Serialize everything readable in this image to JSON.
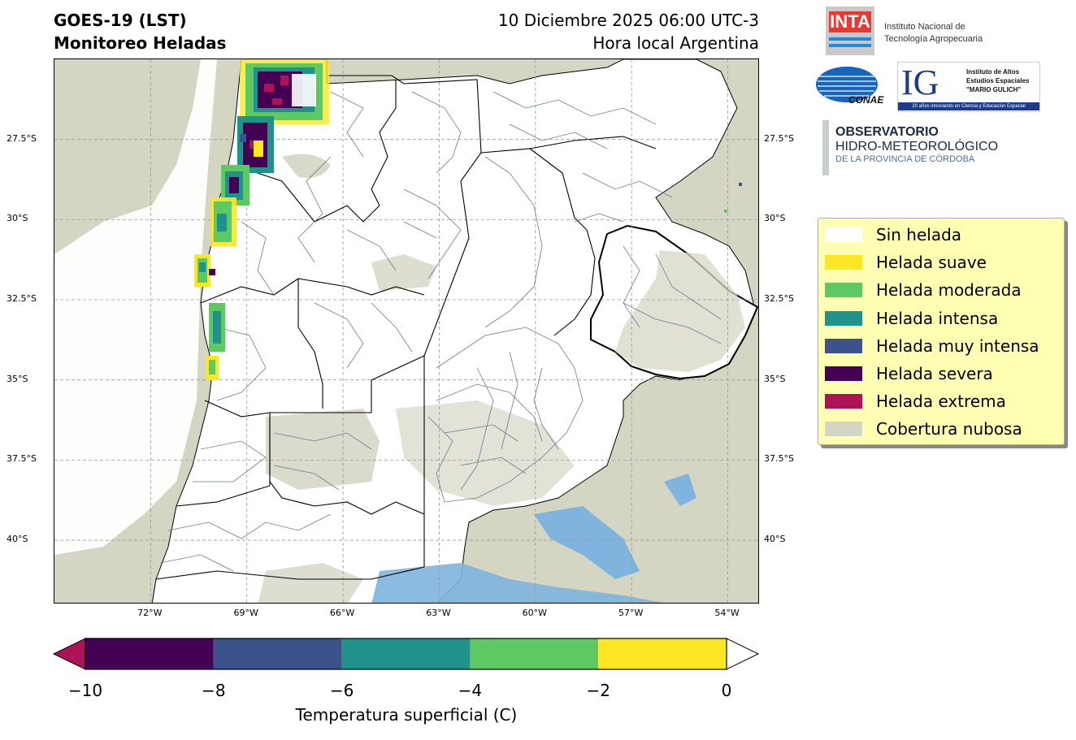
{
  "header": {
    "title_line1": "GOES-19 (LST)",
    "title_line2": "Monitoreo Heladas",
    "datetime": "10 Diciembre 2025 06:00 UTC-3",
    "time_zone": "Hora local Argentina"
  },
  "logos": {
    "inta": {
      "mark": "INTA",
      "line1": "Instituto Nacional de",
      "line2": "Tecnología Agropecuaria"
    },
    "conae": {
      "mark": "CONAE"
    },
    "ig": {
      "mark": "IG",
      "line1": "Instituto de Altos",
      "line2": "Estudios Espaciales",
      "line3": "\"MARIO GULICH\"",
      "tagline": "20 años innovando en Ciencia y Educación Espacial"
    },
    "observatorio": {
      "line1": "OBSERVATORIO",
      "line2": "HIDRO-METEOROLÓGICO",
      "line3": "DE LA PROVINCIA DE CÓRDOBA"
    }
  },
  "map": {
    "lat_ticks_left": [
      "27.5°S",
      "30°S",
      "32.5°S",
      "35°S",
      "37.5°S",
      "40°S"
    ],
    "lat_ticks_right": [
      "27.5°S",
      "30°S",
      "32.5°S",
      "35°S",
      "37.5°S",
      "40°S"
    ],
    "lon_ticks": [
      "72°W",
      "69°W",
      "66°W",
      "63°W",
      "60°W",
      "57°W",
      "54°W"
    ],
    "lat_values": [
      -27.5,
      -30,
      -32.5,
      -35,
      -37.5,
      -40
    ],
    "lon_values": [
      -72,
      -69,
      -66,
      -63,
      -60,
      -57,
      -54
    ],
    "extent": {
      "lon_min": -75,
      "lon_max": -53,
      "lat_min": -42,
      "lat_max": -25
    },
    "colors": {
      "land": "#ffffff",
      "cloud": "#d5d5c4",
      "water": "#7eb4de",
      "boundary": "#6a7b8e",
      "province": "#000000"
    }
  },
  "colorbar": {
    "label": "Temperatura superficial (C)",
    "ticks": [
      "−10",
      "−8",
      "−6",
      "−4",
      "−2",
      "0"
    ],
    "tick_values": [
      -10,
      -8,
      -6,
      -4,
      -2,
      0
    ],
    "segments": [
      {
        "from": -10,
        "to": -8,
        "color": "#440154"
      },
      {
        "from": -8,
        "to": -6,
        "color": "#3b528b"
      },
      {
        "from": -6,
        "to": -4,
        "color": "#21918c"
      },
      {
        "from": -4,
        "to": -2,
        "color": "#5ec962"
      },
      {
        "from": -2,
        "to": 0,
        "color": "#fde725"
      }
    ],
    "under_color": "#ad1457",
    "over_color": "#ffffff"
  },
  "legend": {
    "items": [
      {
        "label": "Sin helada",
        "color": "#ffffff"
      },
      {
        "label": "Helada suave",
        "color": "#fde725"
      },
      {
        "label": "Helada moderada",
        "color": "#5ec962"
      },
      {
        "label": "Helada intensa",
        "color": "#21918c"
      },
      {
        "label": "Helada muy intensa",
        "color": "#3b528b"
      },
      {
        "label": "Helada severa",
        "color": "#440154"
      },
      {
        "label": "Helada extrema",
        "color": "#ad1457"
      },
      {
        "label": "Cobertura nubosa",
        "color": "#d5d5c4"
      }
    ]
  }
}
